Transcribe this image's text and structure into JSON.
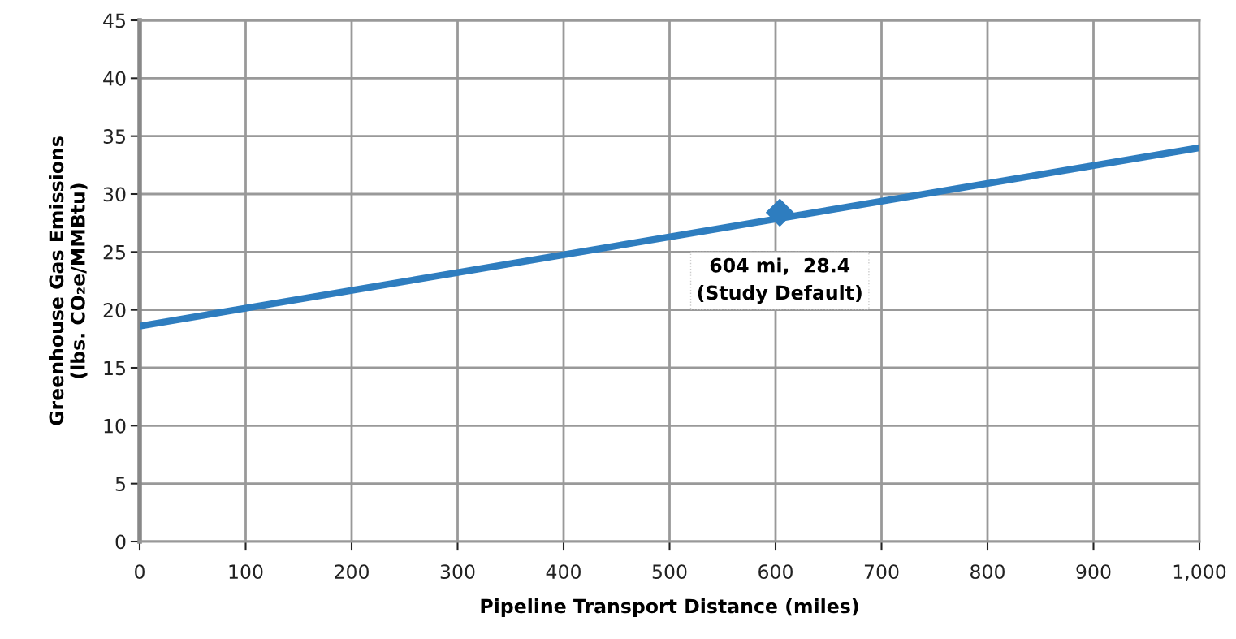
{
  "chart_data": {
    "type": "line",
    "xlabel": "Pipeline Transport Distance (miles)",
    "ylabel": "Greenhouse Gas Emissions\n(lbs. CO₂e/MMBtu)",
    "series": [
      {
        "color": "#2e7dbf",
        "x": [
          0,
          1000
        ],
        "values": [
          18.6,
          34.0
        ],
        "marker": "none"
      },
      {
        "type": "scatter",
        "color": "#2e7dbf",
        "x": [
          604
        ],
        "values": [
          28.4
        ],
        "marker": "diamond"
      }
    ],
    "annotations": [
      {
        "text": "604 mi,  28.4\n(Study Default)",
        "x": 604,
        "y": 28.4
      }
    ],
    "xlim": [
      0,
      1000
    ],
    "xticks": [
      0,
      100,
      200,
      300,
      400,
      500,
      600,
      700,
      800,
      900,
      {
        "value": 1000,
        "label": "1,000"
      }
    ],
    "ylim": [
      0,
      45
    ],
    "yticks": [
      0,
      5,
      10,
      15,
      20,
      25,
      30,
      35,
      40,
      45
    ],
    "grid": true,
    "legend": false
  }
}
